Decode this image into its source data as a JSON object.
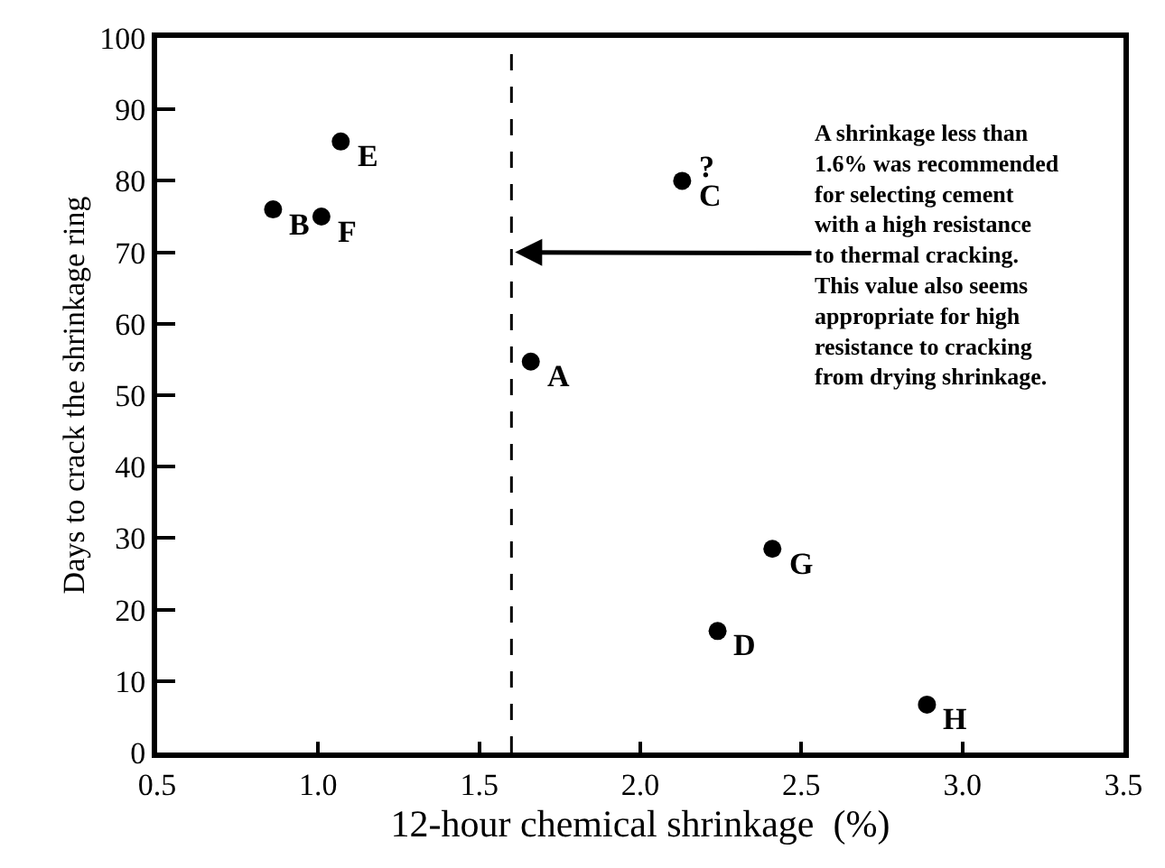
{
  "chart_data": {
    "type": "scatter",
    "xlabel": "12-hour chemical shrinkage  (%)",
    "ylabel": "Days to crack the shrinkage ring",
    "x": [
      0.86,
      1.01,
      1.07,
      1.66,
      2.13,
      2.24,
      2.41,
      2.89
    ],
    "values": [
      76,
      75,
      85.5,
      54.7,
      80,
      17,
      28.5,
      6.7
    ],
    "color": "#000000",
    "marker": "circle",
    "legend": false,
    "xlim": [
      0.5,
      3.5
    ],
    "xticks": [
      {
        "value": 0.5,
        "label": "0.5"
      },
      {
        "value": 1.0,
        "label": "1.0"
      },
      {
        "value": 1.5,
        "label": "1.5"
      },
      {
        "value": 2.0,
        "label": "2.0"
      },
      {
        "value": 2.5,
        "label": "2.5"
      },
      {
        "value": 3.0,
        "label": "3.0"
      },
      {
        "value": 3.5,
        "label": "3.5"
      }
    ],
    "ylim": [
      0,
      100
    ],
    "yticks": [
      0,
      10,
      20,
      30,
      40,
      50,
      60,
      70,
      80,
      90,
      100
    ],
    "ref_lines": [
      {
        "axis": "x",
        "value": 1.6,
        "line_style": "dashed",
        "color": "#000000",
        "label": "A shrinkage less than 1.6% was recommended for selecting cement with a high resistance to thermal cracking. This value also seems appropriate for high resistance to cracking from drying shrinkage."
      }
    ],
    "annotations": [
      {
        "text": "B",
        "x": 0.86,
        "y": 76
      },
      {
        "text": "F",
        "x": 1.01,
        "y": 75
      },
      {
        "text": "E",
        "x": 1.07,
        "y": 85.5
      },
      {
        "text": "A",
        "x": 1.66,
        "y": 54.7
      },
      {
        "text": "C",
        "x": 2.13,
        "y": 80
      },
      {
        "text": "?",
        "x": 2.13,
        "y": 80
      },
      {
        "text": "D",
        "x": 2.24,
        "y": 17
      },
      {
        "text": "G",
        "x": 2.41,
        "y": 28.5
      },
      {
        "text": "H",
        "x": 2.89,
        "y": 6.7
      }
    ]
  }
}
